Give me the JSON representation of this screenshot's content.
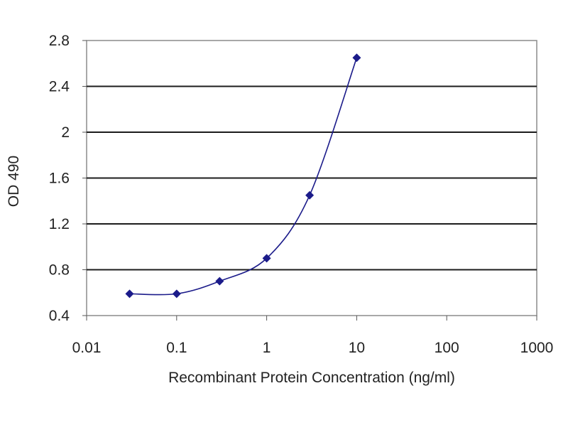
{
  "chart_data": {
    "type": "line",
    "title": "",
    "xlabel": "Recombinant Protein Concentration (ng/ml)",
    "ylabel": "OD 490",
    "x_scale": "log",
    "xlim": [
      0.01,
      1000
    ],
    "ylim": [
      0.4,
      2.8
    ],
    "x_ticks": [
      0.01,
      0.1,
      1,
      10,
      100,
      1000
    ],
    "x_tick_labels": [
      "0.01",
      "0.1",
      "1",
      "10",
      "100",
      "1000"
    ],
    "y_ticks": [
      0.4,
      0.8,
      1.2,
      1.6,
      2,
      2.4,
      2.8
    ],
    "y_tick_labels": [
      "0.4",
      "0.8",
      "1.2",
      "1.6",
      "2",
      "2.4",
      "2.8"
    ],
    "grid": "horizontal",
    "legend": "none",
    "series": [
      {
        "x": [
          0.03,
          0.1,
          0.3,
          1,
          3,
          10
        ],
        "y": [
          0.59,
          0.59,
          0.7,
          0.9,
          1.45,
          2.65
        ],
        "color": "#1b1b8a"
      }
    ]
  }
}
